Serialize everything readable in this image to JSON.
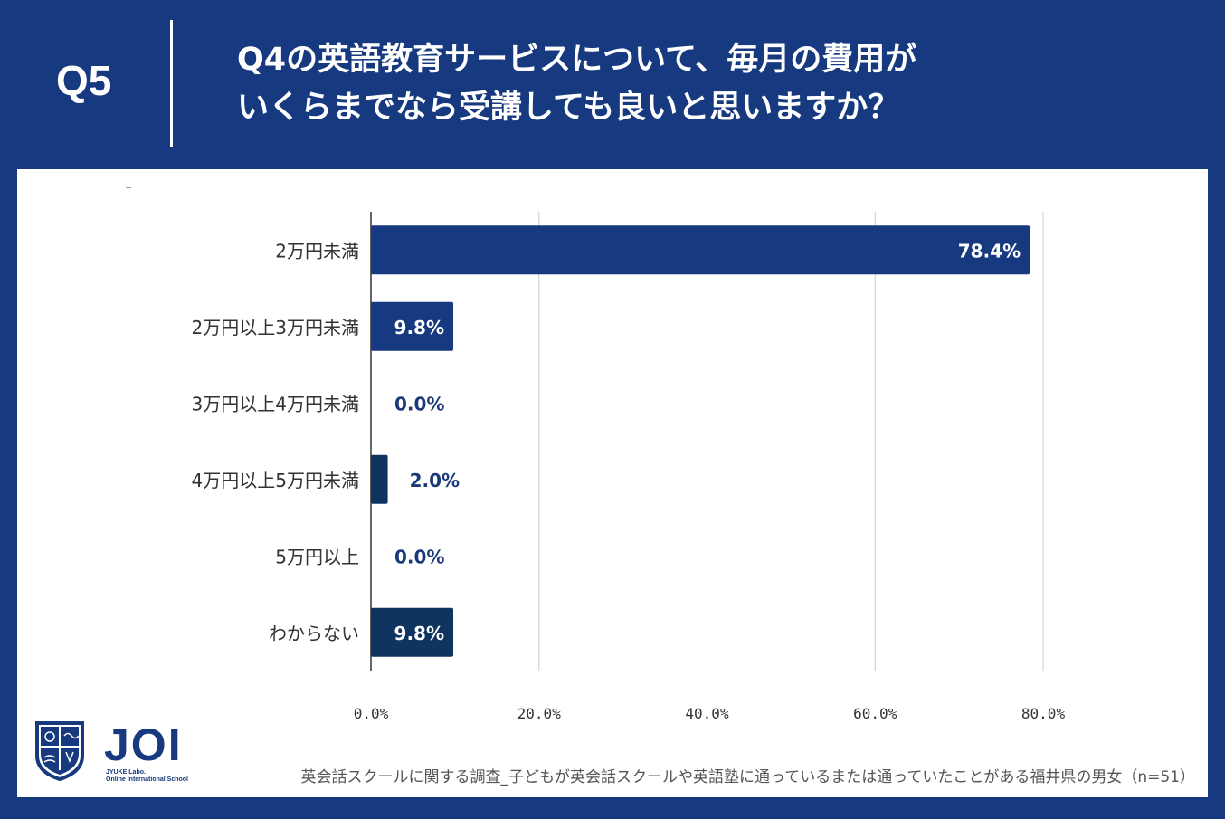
{
  "header": {
    "q_label": "Q5",
    "question_line1": "Q4の英語教育サービスについて、毎月の費用が",
    "question_line2": "いくらまでなら受講しても良いと思いますか？"
  },
  "colors": {
    "background": "#17397f",
    "bar_primary": "#17397f",
    "bar_secondary": "#0f3460",
    "label_dark": "#1c3a78",
    "grid": "#cccccc"
  },
  "chart_data": {
    "type": "bar",
    "orientation": "horizontal",
    "categories": [
      "2万円未満",
      "2万円以上3万円未満",
      "3万円以上4万円未満",
      "4万円以上5万円未満",
      "5万円以上",
      "わからない"
    ],
    "values": [
      78.4,
      9.8,
      0.0,
      2.0,
      0.0,
      9.8
    ],
    "value_labels": [
      "78.4%",
      "9.8%",
      "0.0%",
      "2.0%",
      "0.0%",
      "9.8%"
    ],
    "x_ticks": [
      "0.0%",
      "20.0%",
      "40.0%",
      "60.0%",
      "80.0%"
    ],
    "xlim": [
      0,
      80
    ],
    "grid": true
  },
  "logo": {
    "word": "JOI",
    "sub1": "JYUKE Labo.",
    "sub2": "Online International School"
  },
  "footnote": "英会話スクールに関する調査_子どもが英会話スクールや英語塾に通っているまたは通っていたことがある福井県の男女（n=51）"
}
